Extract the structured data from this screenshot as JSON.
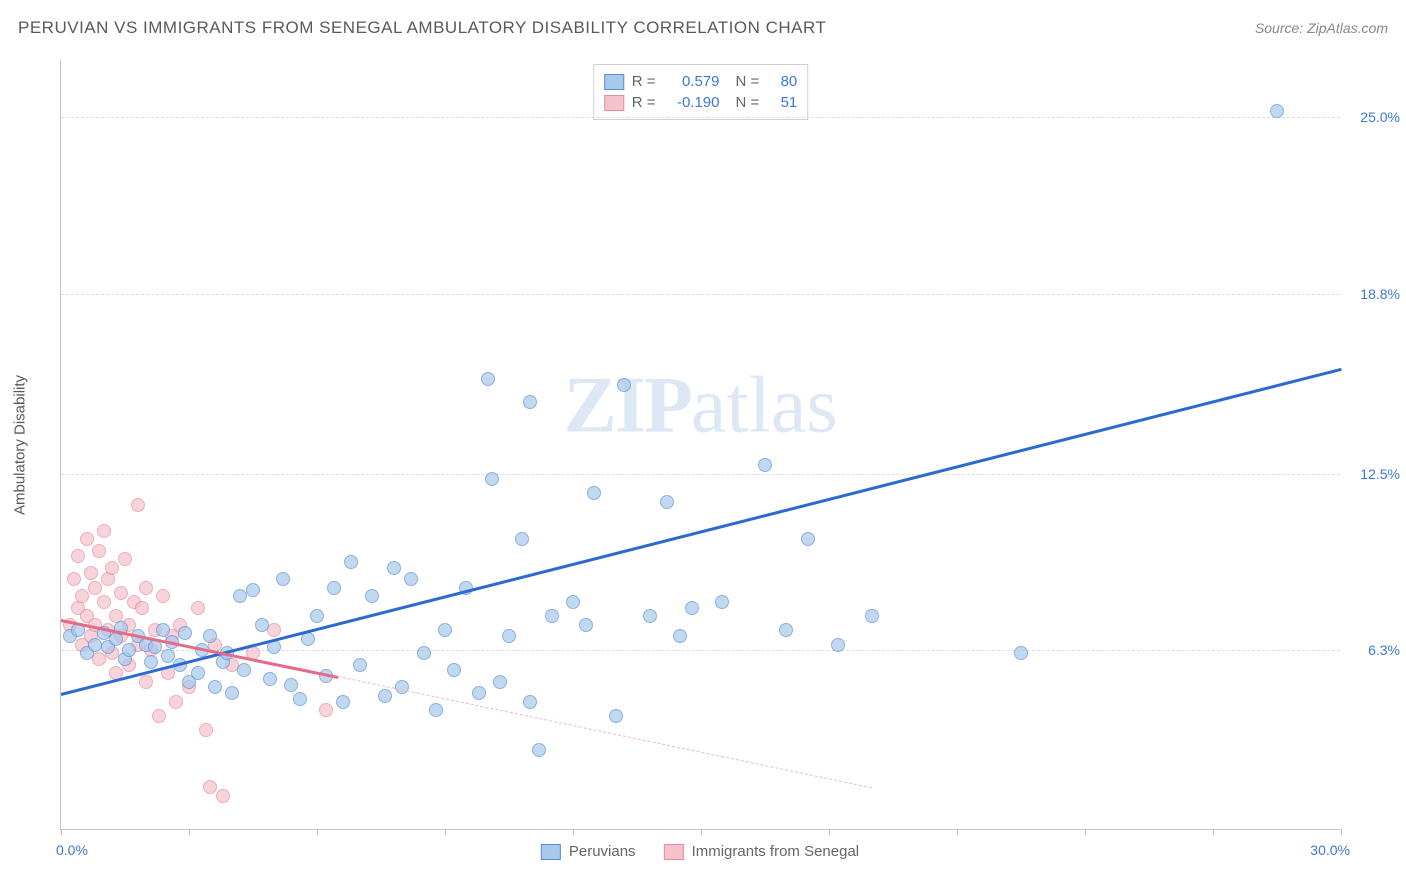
{
  "header": {
    "title": "PERUVIAN VS IMMIGRANTS FROM SENEGAL AMBULATORY DISABILITY CORRELATION CHART",
    "source": "Source: ZipAtlas.com"
  },
  "chart": {
    "type": "scatter",
    "y_axis_label": "Ambulatory Disability",
    "xlim": [
      0,
      30
    ],
    "ylim": [
      0,
      27
    ],
    "x_min_label": "0.0%",
    "x_max_label": "30.0%",
    "y_ticks": [
      {
        "v": 6.3,
        "label": "6.3%"
      },
      {
        "v": 12.5,
        "label": "12.5%"
      },
      {
        "v": 18.8,
        "label": "18.8%"
      },
      {
        "v": 25.0,
        "label": "25.0%"
      }
    ],
    "x_tick_values": [
      0,
      3,
      6,
      9,
      12,
      15,
      18,
      21,
      24,
      27,
      30
    ],
    "grid_color": "#dcdcdc",
    "background_color": "#ffffff",
    "axis_color": "#c8c8c8",
    "watermark": "ZIPatlas",
    "series": {
      "blue": {
        "label": "Peruvians",
        "fill": "#a8c8ec",
        "stroke": "#5b8fd1",
        "R": "0.579",
        "N": "80",
        "stat_color": "#3b78d8",
        "trend": {
          "x1": 0,
          "y1": 4.8,
          "x2": 30,
          "y2": 16.2,
          "color": "#2a6ad1",
          "width": 2.5,
          "style": "solid"
        },
        "points": [
          [
            0.2,
            6.8
          ],
          [
            0.4,
            7.0
          ],
          [
            0.6,
            6.2
          ],
          [
            0.8,
            6.5
          ],
          [
            1.0,
            6.9
          ],
          [
            1.1,
            6.4
          ],
          [
            1.3,
            6.7
          ],
          [
            1.4,
            7.1
          ],
          [
            1.5,
            6.0
          ],
          [
            1.6,
            6.3
          ],
          [
            1.8,
            6.8
          ],
          [
            2.0,
            6.5
          ],
          [
            2.1,
            5.9
          ],
          [
            2.2,
            6.4
          ],
          [
            2.4,
            7.0
          ],
          [
            2.5,
            6.1
          ],
          [
            2.6,
            6.6
          ],
          [
            2.8,
            5.8
          ],
          [
            2.9,
            6.9
          ],
          [
            3.0,
            5.2
          ],
          [
            3.2,
            5.5
          ],
          [
            3.3,
            6.3
          ],
          [
            3.5,
            6.8
          ],
          [
            3.6,
            5.0
          ],
          [
            3.8,
            5.9
          ],
          [
            3.9,
            6.2
          ],
          [
            4.0,
            4.8
          ],
          [
            4.2,
            8.2
          ],
          [
            4.3,
            5.6
          ],
          [
            4.5,
            8.4
          ],
          [
            4.7,
            7.2
          ],
          [
            4.9,
            5.3
          ],
          [
            5.0,
            6.4
          ],
          [
            5.2,
            8.8
          ],
          [
            5.4,
            5.1
          ],
          [
            5.6,
            4.6
          ],
          [
            5.8,
            6.7
          ],
          [
            6.0,
            7.5
          ],
          [
            6.2,
            5.4
          ],
          [
            6.4,
            8.5
          ],
          [
            6.6,
            4.5
          ],
          [
            6.8,
            9.4
          ],
          [
            7.0,
            5.8
          ],
          [
            7.3,
            8.2
          ],
          [
            7.6,
            4.7
          ],
          [
            7.8,
            9.2
          ],
          [
            8.0,
            5.0
          ],
          [
            8.2,
            8.8
          ],
          [
            8.5,
            6.2
          ],
          [
            8.8,
            4.2
          ],
          [
            9.0,
            7.0
          ],
          [
            9.2,
            5.6
          ],
          [
            9.5,
            8.5
          ],
          [
            9.8,
            4.8
          ],
          [
            10.0,
            15.8
          ],
          [
            10.1,
            12.3
          ],
          [
            10.3,
            5.2
          ],
          [
            10.5,
            6.8
          ],
          [
            10.8,
            10.2
          ],
          [
            11.0,
            4.5
          ],
          [
            11.2,
            2.8
          ],
          [
            11.5,
            7.5
          ],
          [
            12.0,
            8.0
          ],
          [
            12.3,
            7.2
          ],
          [
            12.5,
            11.8
          ],
          [
            13.0,
            4.0
          ],
          [
            13.2,
            15.6
          ],
          [
            13.8,
            7.5
          ],
          [
            14.2,
            11.5
          ],
          [
            14.5,
            6.8
          ],
          [
            14.8,
            7.8
          ],
          [
            15.5,
            8.0
          ],
          [
            16.5,
            12.8
          ],
          [
            17.0,
            7.0
          ],
          [
            17.5,
            10.2
          ],
          [
            18.2,
            6.5
          ],
          [
            19.0,
            7.5
          ],
          [
            22.5,
            6.2
          ],
          [
            28.5,
            25.2
          ],
          [
            11.0,
            15.0
          ]
        ]
      },
      "pink": {
        "label": "Immigrants from Senegal",
        "fill": "#f5c2cb",
        "stroke": "#e88aa0",
        "R": "-0.190",
        "N": "51",
        "stat_color": "#3b78d8",
        "trend_solid": {
          "x1": 0,
          "y1": 7.4,
          "x2": 6.5,
          "y2": 5.4,
          "color": "#e56b87",
          "width": 2.5
        },
        "trend_dash": {
          "x1": 6.5,
          "y1": 5.4,
          "x2": 19,
          "y2": 1.5,
          "color": "#f0b8c4",
          "width": 1.5
        },
        "points": [
          [
            0.2,
            7.2
          ],
          [
            0.3,
            8.8
          ],
          [
            0.4,
            7.8
          ],
          [
            0.4,
            9.6
          ],
          [
            0.5,
            6.5
          ],
          [
            0.5,
            8.2
          ],
          [
            0.6,
            10.2
          ],
          [
            0.6,
            7.5
          ],
          [
            0.7,
            9.0
          ],
          [
            0.7,
            6.8
          ],
          [
            0.8,
            8.5
          ],
          [
            0.8,
            7.2
          ],
          [
            0.9,
            9.8
          ],
          [
            0.9,
            6.0
          ],
          [
            1.0,
            8.0
          ],
          [
            1.0,
            10.5
          ],
          [
            1.1,
            7.0
          ],
          [
            1.1,
            8.8
          ],
          [
            1.2,
            6.2
          ],
          [
            1.2,
            9.2
          ],
          [
            1.3,
            7.5
          ],
          [
            1.3,
            5.5
          ],
          [
            1.4,
            8.3
          ],
          [
            1.4,
            6.8
          ],
          [
            1.5,
            9.5
          ],
          [
            1.6,
            7.2
          ],
          [
            1.6,
            5.8
          ],
          [
            1.7,
            8.0
          ],
          [
            1.8,
            6.5
          ],
          [
            1.8,
            11.4
          ],
          [
            1.9,
            7.8
          ],
          [
            2.0,
            5.2
          ],
          [
            2.0,
            8.5
          ],
          [
            2.1,
            6.3
          ],
          [
            2.2,
            7.0
          ],
          [
            2.3,
            4.0
          ],
          [
            2.4,
            8.2
          ],
          [
            2.5,
            5.5
          ],
          [
            2.6,
            6.8
          ],
          [
            2.7,
            4.5
          ],
          [
            2.8,
            7.2
          ],
          [
            3.0,
            5.0
          ],
          [
            3.2,
            7.8
          ],
          [
            3.4,
            3.5
          ],
          [
            3.5,
            1.5
          ],
          [
            3.6,
            6.5
          ],
          [
            3.8,
            1.2
          ],
          [
            4.0,
            5.8
          ],
          [
            4.5,
            6.2
          ],
          [
            5.0,
            7.0
          ],
          [
            6.2,
            4.2
          ]
        ]
      }
    }
  }
}
